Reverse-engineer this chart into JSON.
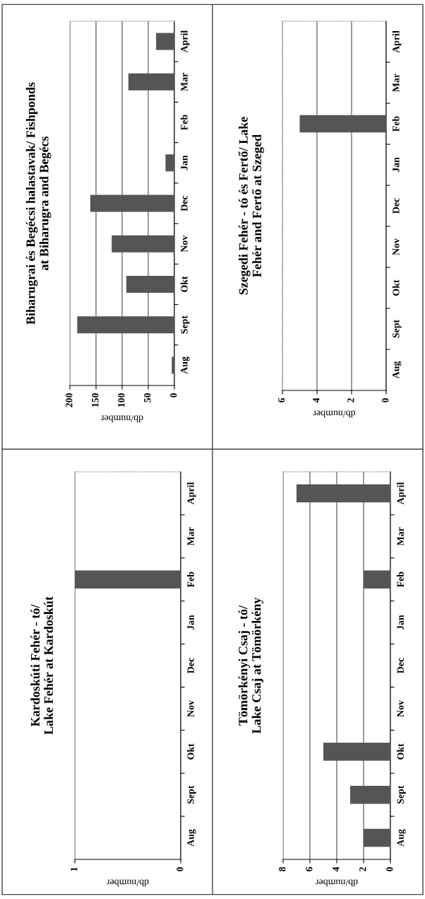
{
  "chart_data": [
    {
      "type": "bar",
      "orientation": "horizontal",
      "title": "Biharugrai és Begécsi halastavak/ Fishponds\nat Biharugra and Begécs",
      "xlabel": "db/number",
      "categories": [
        "April",
        "Mar",
        "Feb",
        "Jan",
        "Dec",
        "Nov",
        "Okt",
        "Sept",
        "Aug"
      ],
      "values": [
        35,
        88,
        0,
        17,
        161,
        120,
        92,
        186,
        5
      ],
      "color": "#555555",
      "xlim": [
        200,
        0
      ],
      "xticks": [
        200,
        150,
        100,
        50,
        0
      ],
      "grid": "x"
    },
    {
      "type": "bar",
      "orientation": "horizontal",
      "title": "Szegedi Fehér - tó és Fertő/ Lake\nFehér and Fertő at Szeged",
      "xlabel": "db/number",
      "categories": [
        "April",
        "Mar",
        "Feb",
        "Jan",
        "Dec",
        "Nov",
        "Okt",
        "Sept",
        "Aug"
      ],
      "values": [
        0,
        0,
        5,
        0,
        0,
        0,
        0,
        0,
        0
      ],
      "color": "#555555",
      "xlim": [
        6,
        0
      ],
      "xticks": [
        6,
        4,
        2,
        0
      ],
      "grid": "x"
    },
    {
      "type": "bar",
      "orientation": "horizontal",
      "title": "Kardoskúti Fehér - tó/\nLake Fehér at Kardoskút",
      "xlabel": "db/number",
      "categories": [
        "April",
        "Mar",
        "Feb",
        "Jan",
        "Dec",
        "Nov",
        "Okt",
        "Sept",
        "Aug"
      ],
      "values": [
        0,
        0,
        1,
        0,
        0,
        0,
        0,
        0,
        0
      ],
      "color": "#555555",
      "xlim": [
        1,
        0
      ],
      "xticks": [
        1,
        0
      ],
      "grid": "x"
    },
    {
      "type": "bar",
      "orientation": "horizontal",
      "title": "Tömörkényi Csaj - tó/\nLake Csaj at Tömörkény",
      "xlabel": "db/number",
      "categories": [
        "April",
        "Mar",
        "Feb",
        "Jan",
        "Dec",
        "Nov",
        "Okt",
        "Sept",
        "Aug"
      ],
      "values": [
        7,
        0,
        2,
        0,
        0,
        0,
        5,
        3,
        2
      ],
      "color": "#555555",
      "xlim": [
        8,
        0
      ],
      "xticks": [
        8,
        6,
        4,
        2,
        0
      ],
      "grid": "x"
    }
  ]
}
